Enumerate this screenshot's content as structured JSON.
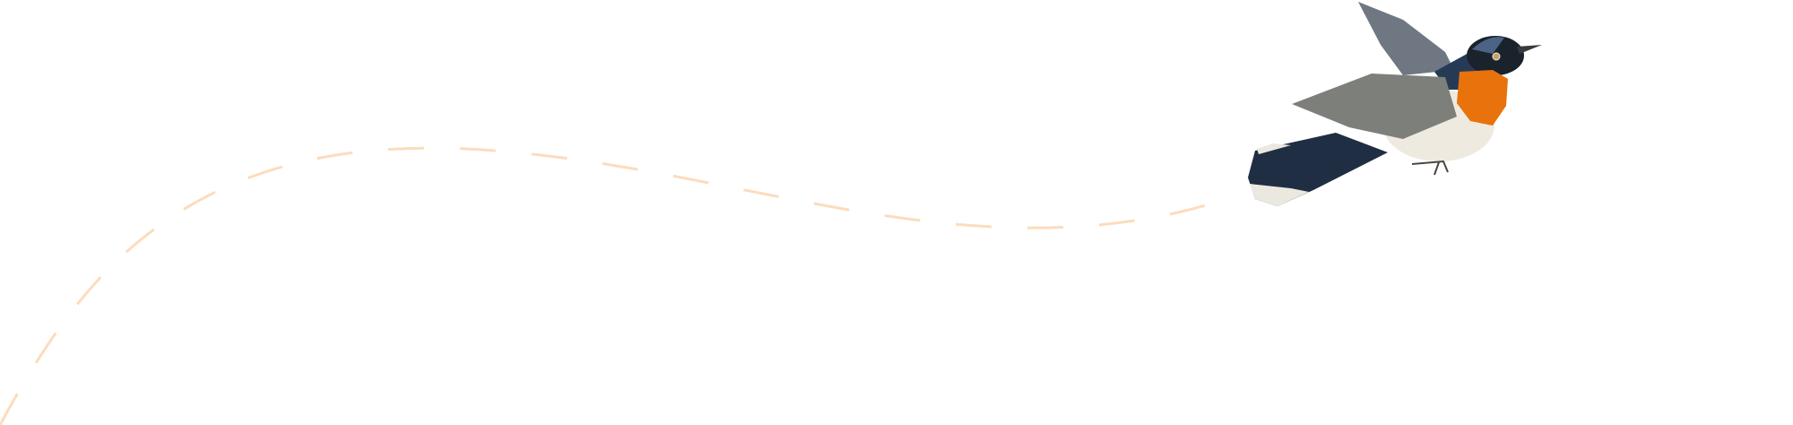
{
  "scene": {
    "subject": "bird",
    "colors": {
      "background": "#ffffff",
      "flight_path": "#fcdcbd",
      "bird_orange": "#e8720c",
      "bird_blue_black": "#1f2e42",
      "bird_wing_gray": "#7d7f7a",
      "bird_belly": "#efeae0"
    }
  }
}
